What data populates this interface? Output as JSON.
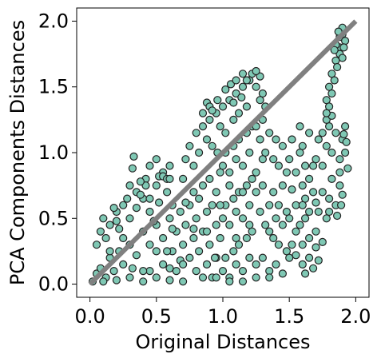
{
  "chart_data": {
    "type": "scatter",
    "title": "",
    "xlabel": "Original Distances",
    "ylabel": "PCA Components Distances",
    "xlim": [
      -0.1,
      2.1
    ],
    "ylim": [
      -0.1,
      2.1
    ],
    "xticks": [
      0.0,
      0.5,
      1.0,
      1.5,
      2.0
    ],
    "yticks": [
      0.0,
      0.5,
      1.0,
      1.5,
      2.0
    ],
    "xtick_labels": [
      "0.0",
      "0.5",
      "1.0",
      "1.5",
      "2.0"
    ],
    "ytick_labels": [
      "0.0",
      "0.5",
      "1.0",
      "1.5",
      "2.0"
    ],
    "grid": false,
    "legend": false,
    "reference_line": {
      "x": [
        0.0,
        2.0
      ],
      "y": [
        0.0,
        2.0
      ],
      "color": "#808080"
    },
    "marker_fill": "#7fc8b4",
    "marker_edge": "#222222",
    "series": [
      {
        "points": [
          [
            0.02,
            0.02
          ],
          [
            0.05,
            0.08
          ],
          [
            0.08,
            0.12
          ],
          [
            0.12,
            0.05
          ],
          [
            0.15,
            0.2
          ],
          [
            0.18,
            0.1
          ],
          [
            0.22,
            0.25
          ],
          [
            0.25,
            0.15
          ],
          [
            0.3,
            0.3
          ],
          [
            0.32,
            0.12
          ],
          [
            0.05,
            0.3
          ],
          [
            0.08,
            0.4
          ],
          [
            0.1,
            0.5
          ],
          [
            0.12,
            0.35
          ],
          [
            0.15,
            0.45
          ],
          [
            0.2,
            0.55
          ],
          [
            0.22,
            0.42
          ],
          [
            0.25,
            0.6
          ],
          [
            0.3,
            0.5
          ],
          [
            0.35,
            0.58
          ],
          [
            0.1,
            0.02
          ],
          [
            0.2,
            0.03
          ],
          [
            0.3,
            0.05
          ],
          [
            0.4,
            0.02
          ],
          [
            0.45,
            0.1
          ],
          [
            0.5,
            0.05
          ],
          [
            0.55,
            0.15
          ],
          [
            0.6,
            0.03
          ],
          [
            0.65,
            0.1
          ],
          [
            0.7,
            0.02
          ],
          [
            0.35,
            0.7
          ],
          [
            0.4,
            0.65
          ],
          [
            0.42,
            0.8
          ],
          [
            0.45,
            0.55
          ],
          [
            0.5,
            0.75
          ],
          [
            0.52,
            0.62
          ],
          [
            0.55,
            0.85
          ],
          [
            0.58,
            0.7
          ],
          [
            0.6,
            0.9
          ],
          [
            0.62,
            0.6
          ],
          [
            0.32,
            0.88
          ],
          [
            0.33,
            0.97
          ],
          [
            0.45,
            0.9
          ],
          [
            0.5,
            0.95
          ],
          [
            0.52,
            0.82
          ],
          [
            0.55,
            0.82
          ],
          [
            0.58,
            0.8
          ],
          [
            0.6,
            0.8
          ],
          [
            0.42,
            0.75
          ],
          [
            0.38,
            0.78
          ],
          [
            0.4,
            0.4
          ],
          [
            0.45,
            0.3
          ],
          [
            0.5,
            0.45
          ],
          [
            0.55,
            0.35
          ],
          [
            0.6,
            0.5
          ],
          [
            0.62,
            0.25
          ],
          [
            0.65,
            0.4
          ],
          [
            0.68,
            0.55
          ],
          [
            0.7,
            0.3
          ],
          [
            0.72,
            0.45
          ],
          [
            0.7,
            0.8
          ],
          [
            0.72,
            0.95
          ],
          [
            0.75,
            1.05
          ],
          [
            0.78,
            0.9
          ],
          [
            0.8,
            1.15
          ],
          [
            0.82,
            1.0
          ],
          [
            0.85,
            1.2
          ],
          [
            0.88,
            1.1
          ],
          [
            0.9,
            1.25
          ],
          [
            0.92,
            1.05
          ],
          [
            0.75,
            0.6
          ],
          [
            0.78,
            0.7
          ],
          [
            0.8,
            0.5
          ],
          [
            0.82,
            0.65
          ],
          [
            0.85,
            0.75
          ],
          [
            0.88,
            0.55
          ],
          [
            0.9,
            0.8
          ],
          [
            0.92,
            0.6
          ],
          [
            0.95,
            0.7
          ],
          [
            0.98,
            0.85
          ],
          [
            0.75,
            0.2
          ],
          [
            0.78,
            0.35
          ],
          [
            0.8,
            0.1
          ],
          [
            0.82,
            0.25
          ],
          [
            0.85,
            0.4
          ],
          [
            0.88,
            0.15
          ],
          [
            0.9,
            0.3
          ],
          [
            0.92,
            0.05
          ],
          [
            0.95,
            0.2
          ],
          [
            0.98,
            0.35
          ],
          [
            0.95,
            1.3
          ],
          [
            0.98,
            1.2
          ],
          [
            1.0,
            1.35
          ],
          [
            1.02,
            1.15
          ],
          [
            1.05,
            1.4
          ],
          [
            1.08,
            1.25
          ],
          [
            1.1,
            1.45
          ],
          [
            1.12,
            1.3
          ],
          [
            1.15,
            1.5
          ],
          [
            1.18,
            1.35
          ],
          [
            1.0,
            0.9
          ],
          [
            1.02,
            1.0
          ],
          [
            1.05,
            0.85
          ],
          [
            1.08,
            1.05
          ],
          [
            1.1,
            0.95
          ],
          [
            1.12,
            1.1
          ],
          [
            1.15,
            0.9
          ],
          [
            1.18,
            1.15
          ],
          [
            1.2,
            1.0
          ],
          [
            1.22,
            1.2
          ],
          [
            1.0,
            0.5
          ],
          [
            1.02,
            0.6
          ],
          [
            1.05,
            0.45
          ],
          [
            1.08,
            0.65
          ],
          [
            1.1,
            0.55
          ],
          [
            1.12,
            0.7
          ],
          [
            1.15,
            0.5
          ],
          [
            1.18,
            0.75
          ],
          [
            1.2,
            0.6
          ],
          [
            1.22,
            0.8
          ],
          [
            1.0,
            0.1
          ],
          [
            1.02,
            0.2
          ],
          [
            1.05,
            0.05
          ],
          [
            1.08,
            0.25
          ],
          [
            1.1,
            0.15
          ],
          [
            1.12,
            0.3
          ],
          [
            1.15,
            0.1
          ],
          [
            1.18,
            0.35
          ],
          [
            1.2,
            0.2
          ],
          [
            1.22,
            0.4
          ],
          [
            1.2,
            1.55
          ],
          [
            1.22,
            1.6
          ],
          [
            1.25,
            1.5
          ],
          [
            1.28,
            1.58
          ],
          [
            1.3,
            1.45
          ],
          [
            1.25,
            1.62
          ],
          [
            1.18,
            1.55
          ],
          [
            1.15,
            1.6
          ],
          [
            1.28,
            1.4
          ],
          [
            1.32,
            1.35
          ],
          [
            1.25,
            1.2
          ],
          [
            1.28,
            1.1
          ],
          [
            1.3,
            1.25
          ],
          [
            1.32,
            1.0
          ],
          [
            1.35,
            1.15
          ],
          [
            1.38,
            0.95
          ],
          [
            1.4,
            1.1
          ],
          [
            1.42,
            0.9
          ],
          [
            1.45,
            1.05
          ],
          [
            1.48,
            0.85
          ],
          [
            1.25,
            0.7
          ],
          [
            1.28,
            0.55
          ],
          [
            1.3,
            0.75
          ],
          [
            1.32,
            0.45
          ],
          [
            1.35,
            0.6
          ],
          [
            1.38,
            0.35
          ],
          [
            1.4,
            0.5
          ],
          [
            1.42,
            0.3
          ],
          [
            1.45,
            0.45
          ],
          [
            1.48,
            0.25
          ],
          [
            1.25,
            0.15
          ],
          [
            1.3,
            0.2
          ],
          [
            1.35,
            0.1
          ],
          [
            1.4,
            0.15
          ],
          [
            1.45,
            0.08
          ],
          [
            1.5,
            0.2
          ],
          [
            1.52,
            0.3
          ],
          [
            1.55,
            0.4
          ],
          [
            1.5,
            0.5
          ],
          [
            1.55,
            0.6
          ],
          [
            1.5,
            0.95
          ],
          [
            1.52,
            1.1
          ],
          [
            1.55,
            0.85
          ],
          [
            1.58,
            1.0
          ],
          [
            1.6,
            0.75
          ],
          [
            1.62,
            0.9
          ],
          [
            1.58,
            1.2
          ],
          [
            1.6,
            1.05
          ],
          [
            1.65,
            1.15
          ],
          [
            1.62,
            0.65
          ],
          [
            1.65,
            0.8
          ],
          [
            1.68,
            0.7
          ],
          [
            1.7,
            0.95
          ],
          [
            1.72,
            1.1
          ],
          [
            1.75,
            0.9
          ],
          [
            1.78,
            1.05
          ],
          [
            1.8,
            1.2
          ],
          [
            1.82,
            1.0
          ],
          [
            1.85,
            1.15
          ],
          [
            1.88,
            0.95
          ],
          [
            1.72,
            0.55
          ],
          [
            1.75,
            0.7
          ],
          [
            1.78,
            0.5
          ],
          [
            1.8,
            0.65
          ],
          [
            1.82,
            0.8
          ],
          [
            1.85,
            0.6
          ],
          [
            1.88,
            0.75
          ],
          [
            1.7,
            0.4
          ],
          [
            1.65,
            0.35
          ],
          [
            1.6,
            0.3
          ],
          [
            1.6,
            0.15
          ],
          [
            1.65,
            0.2
          ],
          [
            1.7,
            0.28
          ],
          [
            1.75,
            0.32
          ],
          [
            1.68,
            0.12
          ],
          [
            1.72,
            0.18
          ],
          [
            1.62,
            0.08
          ],
          [
            1.8,
            0.55
          ],
          [
            1.78,
            1.25
          ],
          [
            1.82,
            1.28
          ],
          [
            1.78,
            1.4
          ],
          [
            1.8,
            1.5
          ],
          [
            1.82,
            1.6
          ],
          [
            1.85,
            1.7
          ],
          [
            1.88,
            1.8
          ],
          [
            1.9,
            1.9
          ],
          [
            1.85,
            1.82
          ],
          [
            1.88,
            1.88
          ],
          [
            1.9,
            1.95
          ],
          [
            1.92,
            1.85
          ],
          [
            1.82,
            1.45
          ],
          [
            1.84,
            1.55
          ],
          [
            1.86,
            1.65
          ],
          [
            1.88,
            1.75
          ],
          [
            1.9,
            1.72
          ],
          [
            1.8,
            1.35
          ],
          [
            1.78,
            1.3
          ],
          [
            1.84,
            1.78
          ],
          [
            1.87,
            1.92
          ],
          [
            1.91,
            1.8
          ],
          [
            1.92,
            1.2
          ],
          [
            1.9,
            1.1
          ],
          [
            1.92,
            1.0
          ],
          [
            1.88,
            0.85
          ],
          [
            1.9,
            0.68
          ],
          [
            1.86,
            0.52
          ],
          [
            1.94,
            0.88
          ],
          [
            1.93,
            1.08
          ],
          [
            1.91,
            1.14
          ],
          [
            1.89,
            0.6
          ],
          [
            0.18,
            0.58
          ],
          [
            0.2,
            0.48
          ],
          [
            0.28,
            0.65
          ],
          [
            0.3,
            0.75
          ],
          [
            0.38,
            0.68
          ],
          [
            0.15,
            0.25
          ],
          [
            0.25,
            0.35
          ],
          [
            0.35,
            0.22
          ],
          [
            0.45,
            0.65
          ],
          [
            0.48,
            0.48
          ],
          [
            0.58,
            0.25
          ],
          [
            0.62,
            0.42
          ],
          [
            0.68,
            0.18
          ],
          [
            0.72,
            0.62
          ],
          [
            0.78,
            0.42
          ],
          [
            0.88,
            0.4
          ],
          [
            0.95,
            0.45
          ],
          [
            0.98,
            0.6
          ],
          [
            0.96,
            1.0
          ],
          [
            0.94,
            0.2
          ],
          [
            1.05,
            0.75
          ],
          [
            1.1,
            0.35
          ],
          [
            1.15,
            0.7
          ],
          [
            1.2,
            0.45
          ],
          [
            1.25,
            0.85
          ],
          [
            1.3,
            0.95
          ],
          [
            1.35,
            0.4
          ],
          [
            1.38,
            0.7
          ],
          [
            1.42,
            0.6
          ],
          [
            1.45,
            0.75
          ],
          [
            1.48,
            0.55
          ],
          [
            1.52,
            0.72
          ],
          [
            1.55,
            0.22
          ],
          [
            1.58,
            0.45
          ],
          [
            1.6,
            0.6
          ],
          [
            1.62,
            0.5
          ],
          [
            1.65,
            0.55
          ],
          [
            1.68,
            0.9
          ],
          [
            1.7,
            0.62
          ],
          [
            1.75,
            1.15
          ],
          [
            0.4,
            0.1
          ],
          [
            0.5,
            0.25
          ],
          [
            0.6,
            0.12
          ],
          [
            0.7,
            0.15
          ],
          [
            0.85,
            0.05
          ],
          [
            0.95,
            0.05
          ],
          [
            1.05,
            0.02
          ],
          [
            1.15,
            0.02
          ],
          [
            1.25,
            0.05
          ],
          [
            1.35,
            0.05
          ],
          [
            0.85,
            1.3
          ],
          [
            0.88,
            1.38
          ],
          [
            0.9,
            1.35
          ],
          [
            0.92,
            1.32
          ],
          [
            0.96,
            1.4
          ],
          [
            1.02,
            1.48
          ],
          [
            1.06,
            1.52
          ],
          [
            1.1,
            1.55
          ],
          [
            1.14,
            1.42
          ],
          [
            1.08,
            1.38
          ]
        ]
      }
    ]
  }
}
